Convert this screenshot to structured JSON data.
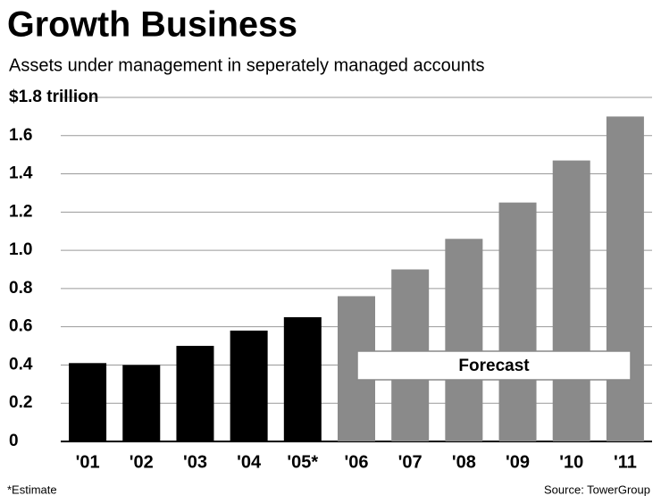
{
  "chart_data": {
    "type": "bar",
    "title": "Growth Business",
    "subtitle": "Assets under management in seperately managed accounts",
    "categories": [
      "'01",
      "'02",
      "'03",
      "'04",
      "'05*",
      "'06",
      "'07",
      "'08",
      "'09",
      "'10",
      "'11"
    ],
    "values": [
      0.41,
      0.4,
      0.5,
      0.58,
      0.65,
      0.76,
      0.9,
      1.06,
      1.25,
      1.47,
      1.7
    ],
    "colors": [
      "#000000",
      "#000000",
      "#000000",
      "#000000",
      "#000000",
      "#8a8a8a",
      "#8a8a8a",
      "#8a8a8a",
      "#8a8a8a",
      "#8a8a8a",
      "#8a8a8a"
    ],
    "ylim": [
      0,
      1.8
    ],
    "yticks": [
      0,
      0.2,
      0.4,
      0.6,
      0.8,
      {
        "value": 1,
        "label": "1.0"
      },
      1.2,
      1.4,
      1.6,
      {
        "value": 1.8,
        "label": "$1.8 trillion"
      }
    ],
    "grid": true,
    "annotation": "Forecast",
    "footnote": "*Estimate",
    "source": "Source: TowerGroup"
  }
}
